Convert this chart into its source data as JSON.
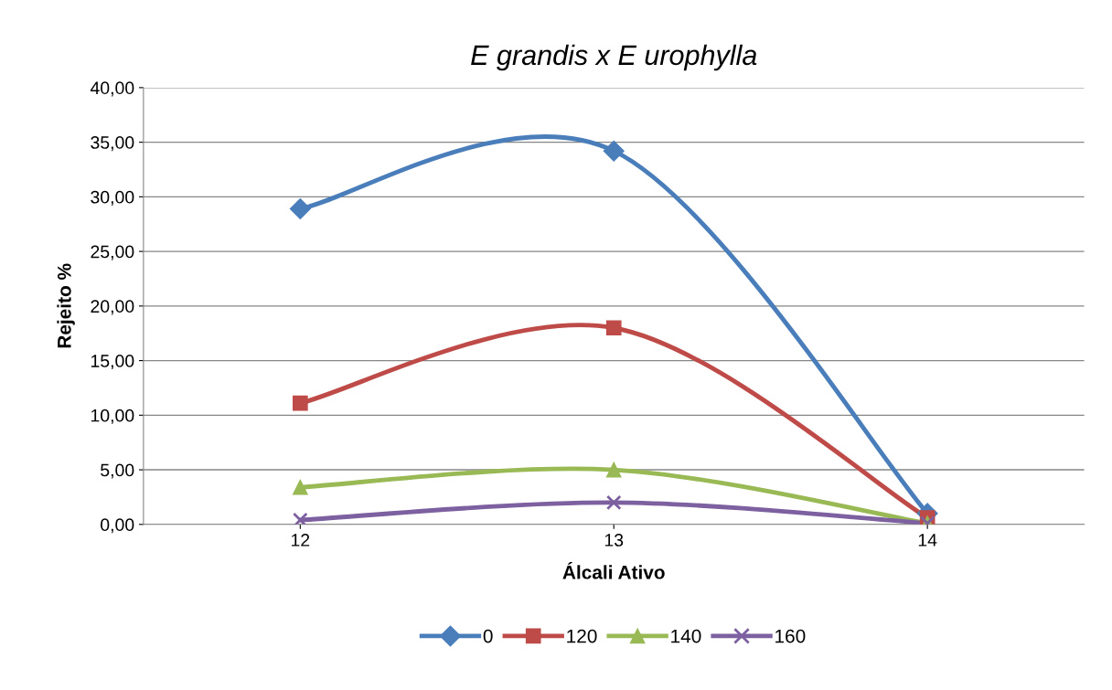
{
  "chart_data": {
    "type": "line",
    "title": "E grandis x E urophylla",
    "xlabel": "Álcali Ativo",
    "ylabel": "Rejeito %",
    "categories": [
      "12",
      "13",
      "14"
    ],
    "series": [
      {
        "name": "0",
        "color": "#4a7ebb",
        "marker": "diamond",
        "values": [
          28.9,
          34.2,
          1.0
        ]
      },
      {
        "name": "120",
        "color": "#be4b48",
        "marker": "square",
        "values": [
          11.1,
          18.0,
          0.6
        ]
      },
      {
        "name": "140",
        "color": "#98b954",
        "marker": "triangle",
        "values": [
          3.4,
          5.0,
          0.1
        ]
      },
      {
        "name": "160",
        "color": "#7d60a0",
        "marker": "cross",
        "values": [
          0.4,
          2.0,
          0.1
        ]
      }
    ],
    "ylim": [
      0,
      40
    ],
    "yticks": [
      {
        "value": 0,
        "label": "0,00"
      },
      {
        "value": 5,
        "label": "5,00"
      },
      {
        "value": 10,
        "label": "10,00"
      },
      {
        "value": 15,
        "label": "15,00"
      },
      {
        "value": 20,
        "label": "20,00"
      },
      {
        "value": 25,
        "label": "25,00"
      },
      {
        "value": 30,
        "label": "30,00"
      },
      {
        "value": 35,
        "label": "35,00"
      },
      {
        "value": 40,
        "label": "40,00"
      }
    ],
    "grid": "y",
    "legend": "bottom",
    "line_style": "solid"
  }
}
